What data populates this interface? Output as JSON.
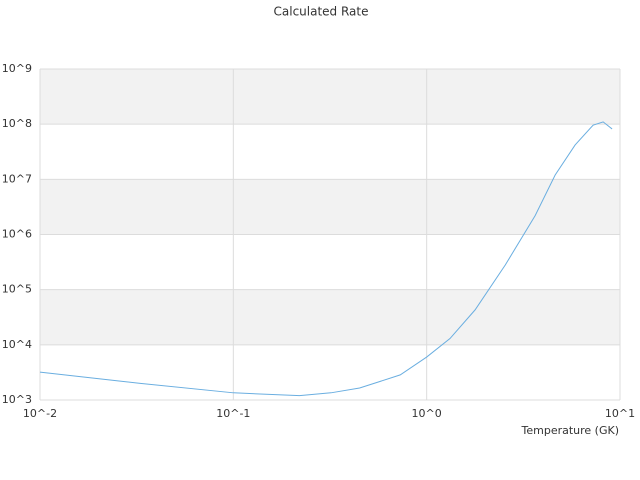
{
  "chart_data": {
    "type": "line",
    "title": "Calculated Rate",
    "x_label": "Temperature (GK)",
    "x": [
      0.01,
      0.033,
      0.1,
      0.22,
      0.32,
      0.45,
      0.73,
      1,
      1.32,
      1.78,
      2.55,
      3.64,
      4.62,
      5.86,
      7.26,
      8.18,
      9.1
    ],
    "values": [
      3200,
      2000,
      1350,
      1200,
      1350,
      1650,
      2850,
      6000,
      13000,
      43000,
      280000,
      2200000,
      12000000,
      42000000,
      96000000,
      110000000,
      82000000
    ],
    "color": "#6aaee0",
    "xscale": "log",
    "yscale": "log",
    "xlim": [
      0.01,
      10
    ],
    "ylim": [
      1000,
      1000000000
    ],
    "xticks": [
      {
        "value": 0.01,
        "label": "10^-2"
      },
      {
        "value": 0.1,
        "label": "10^-1"
      },
      {
        "value": 1,
        "label": "10^0"
      },
      {
        "value": 10,
        "label": "10^1"
      }
    ],
    "yticks": [
      {
        "value": 1000,
        "label": "10^3"
      },
      {
        "value": 10000,
        "label": "10^4"
      },
      {
        "value": 100000,
        "label": "10^5"
      },
      {
        "value": 1000000,
        "label": "10^6"
      },
      {
        "value": 10000000,
        "label": "10^7"
      },
      {
        "value": 100000000,
        "label": "10^8"
      },
      {
        "value": 1000000000,
        "label": "10^9"
      }
    ],
    "grid": true,
    "band_color": "#f2f2f2"
  }
}
